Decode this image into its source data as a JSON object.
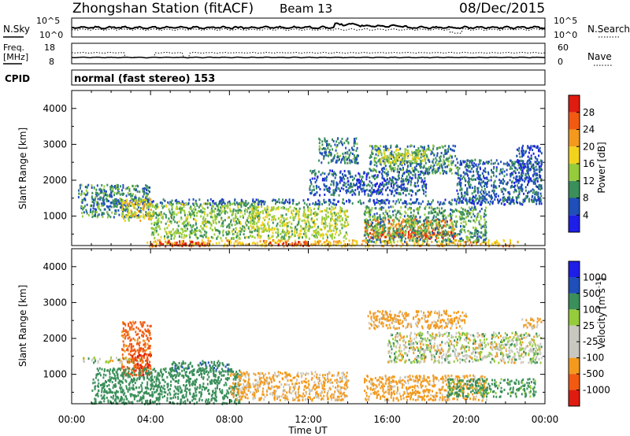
{
  "header": {
    "station": "Zhongshan Station (fitACF)",
    "beam": "Beam 13",
    "date": "08/Dec/2015",
    "cpid_label": "CPID",
    "cpid_value": "normal (fast stereo) 153"
  },
  "noise_panel": {
    "left_label": "N.Sky",
    "right_label": "N.Search",
    "left_ticks": [
      "10^5",
      "10^0"
    ],
    "right_ticks": [
      "10^5",
      "10^0"
    ]
  },
  "freq_panel": {
    "left_label_1": "Freq.",
    "left_label_2": "[MHz]",
    "right_label": "Nave",
    "left_ticks": [
      "18",
      "8"
    ],
    "right_ticks": [
      "60",
      "0"
    ]
  },
  "colors": {
    "power_scale": [
      "#1e1ee8",
      "#1f4fb8",
      "#3a8f5a",
      "#96cc3c",
      "#f3d21e",
      "#f39a1e",
      "#f25a12",
      "#e01b10"
    ],
    "velocity_scale": [
      "#e01b10",
      "#f25a12",
      "#f39a1e",
      "#c8c8c0",
      "#c8c8c0",
      "#96cc3c",
      "#3a8f5a",
      "#1f4fb8",
      "#1e1ee8"
    ]
  },
  "chart_data": [
    {
      "type": "heatmap",
      "title": "",
      "xlabel": "",
      "ylabel": "Slant Range [km]",
      "x_ticks": [
        "00:00",
        "04:00",
        "08:00",
        "12:00",
        "16:00",
        "20:00",
        "00:00"
      ],
      "y_ticks": [
        "1000",
        "2000",
        "3000",
        "4000"
      ],
      "ylim": [
        180,
        4500
      ],
      "colorbar": {
        "label": "Power [dB]",
        "ticks": [
          "4",
          "8",
          "12",
          "16",
          "20",
          "24",
          "28"
        ],
        "range": [
          0,
          30
        ]
      },
      "scatter_regions": [
        {
          "t": [
            1.0,
            23.8
          ],
          "r": [
            1350,
            1500
          ],
          "value": 6
        },
        {
          "t": [
            0.3,
            4.0
          ],
          "r": [
            1000,
            1900
          ],
          "value": 9
        },
        {
          "t": [
            2.5,
            4.0
          ],
          "r": [
            900,
            1500
          ],
          "value": 17
        },
        {
          "t": [
            3.8,
            22.8
          ],
          "r": [
            190,
            360
          ],
          "value": 19
        },
        {
          "t": [
            4.0,
            7.0
          ],
          "r": [
            190,
            320
          ],
          "value": 28
        },
        {
          "t": [
            10.0,
            12.0
          ],
          "r": [
            190,
            320
          ],
          "value": 26
        },
        {
          "t": [
            4.0,
            9.5
          ],
          "r": [
            400,
            1400
          ],
          "value": 12
        },
        {
          "t": [
            9.0,
            14.0
          ],
          "r": [
            400,
            1300
          ],
          "value": 14
        },
        {
          "t": [
            14.8,
            19.5
          ],
          "r": [
            450,
            950
          ],
          "value": 22
        },
        {
          "t": [
            15.0,
            19.5
          ],
          "r": [
            400,
            600
          ],
          "value": 27
        },
        {
          "t": [
            14.8,
            21.0
          ],
          "r": [
            300,
            1300
          ],
          "value": 10
        },
        {
          "t": [
            15.0,
            19.5
          ],
          "r": [
            2200,
            3000
          ],
          "value": 9
        },
        {
          "t": [
            15.5,
            18.0
          ],
          "r": [
            2500,
            2900
          ],
          "value": 14
        },
        {
          "t": [
            19.5,
            23.8
          ],
          "r": [
            1400,
            2600
          ],
          "value": 7
        },
        {
          "t": [
            12.0,
            18.0
          ],
          "r": [
            1600,
            2300
          ],
          "value": 6
        },
        {
          "t": [
            22.5,
            23.8
          ],
          "r": [
            2000,
            3000
          ],
          "value": 5
        },
        {
          "t": [
            12.5,
            14.5
          ],
          "r": [
            2500,
            3200
          ],
          "value": 8
        }
      ]
    },
    {
      "type": "heatmap",
      "title": "",
      "xlabel": "Time UT",
      "ylabel": "Slant Range [km]",
      "x_ticks": [
        "00:00",
        "04:00",
        "08:00",
        "12:00",
        "16:00",
        "20:00",
        "00:00"
      ],
      "y_ticks": [
        "1000",
        "2000",
        "3000",
        "4000"
      ],
      "ylim": [
        180,
        4500
      ],
      "colorbar": {
        "label": "Velocity [m s^-1]",
        "ticks": [
          "1000",
          "500",
          "100",
          "25",
          "-25",
          "-100",
          "-500",
          "-1000"
        ]
      },
      "scatter_regions": [
        {
          "t": [
            0.5,
            3.5
          ],
          "r": [
            1350,
            1500
          ],
          "value": 0
        },
        {
          "t": [
            16.0,
            23.8
          ],
          "r": [
            1350,
            2200
          ],
          "value": 0
        },
        {
          "t": [
            15.0,
            20.0
          ],
          "r": [
            2300,
            2800
          ],
          "value": -200
        },
        {
          "t": [
            2.5,
            4.0
          ],
          "r": [
            1000,
            2500
          ],
          "value": -600
        },
        {
          "t": [
            3.0,
            4.0
          ],
          "r": [
            1000,
            1600
          ],
          "value": -1000
        },
        {
          "t": [
            1.0,
            8.5
          ],
          "r": [
            200,
            1200
          ],
          "value": 300
        },
        {
          "t": [
            8.0,
            14.0
          ],
          "r": [
            300,
            1100
          ],
          "value": -150
        },
        {
          "t": [
            14.8,
            21.0
          ],
          "r": [
            300,
            1000
          ],
          "value": -200
        },
        {
          "t": [
            19.0,
            23.5
          ],
          "r": [
            400,
            900
          ],
          "value": 200
        },
        {
          "t": [
            5.0,
            8.0
          ],
          "r": [
            1100,
            1400
          ],
          "value": 400
        },
        {
          "t": [
            22.8,
            23.8
          ],
          "r": [
            2300,
            2600
          ],
          "value": -200
        }
      ]
    }
  ]
}
